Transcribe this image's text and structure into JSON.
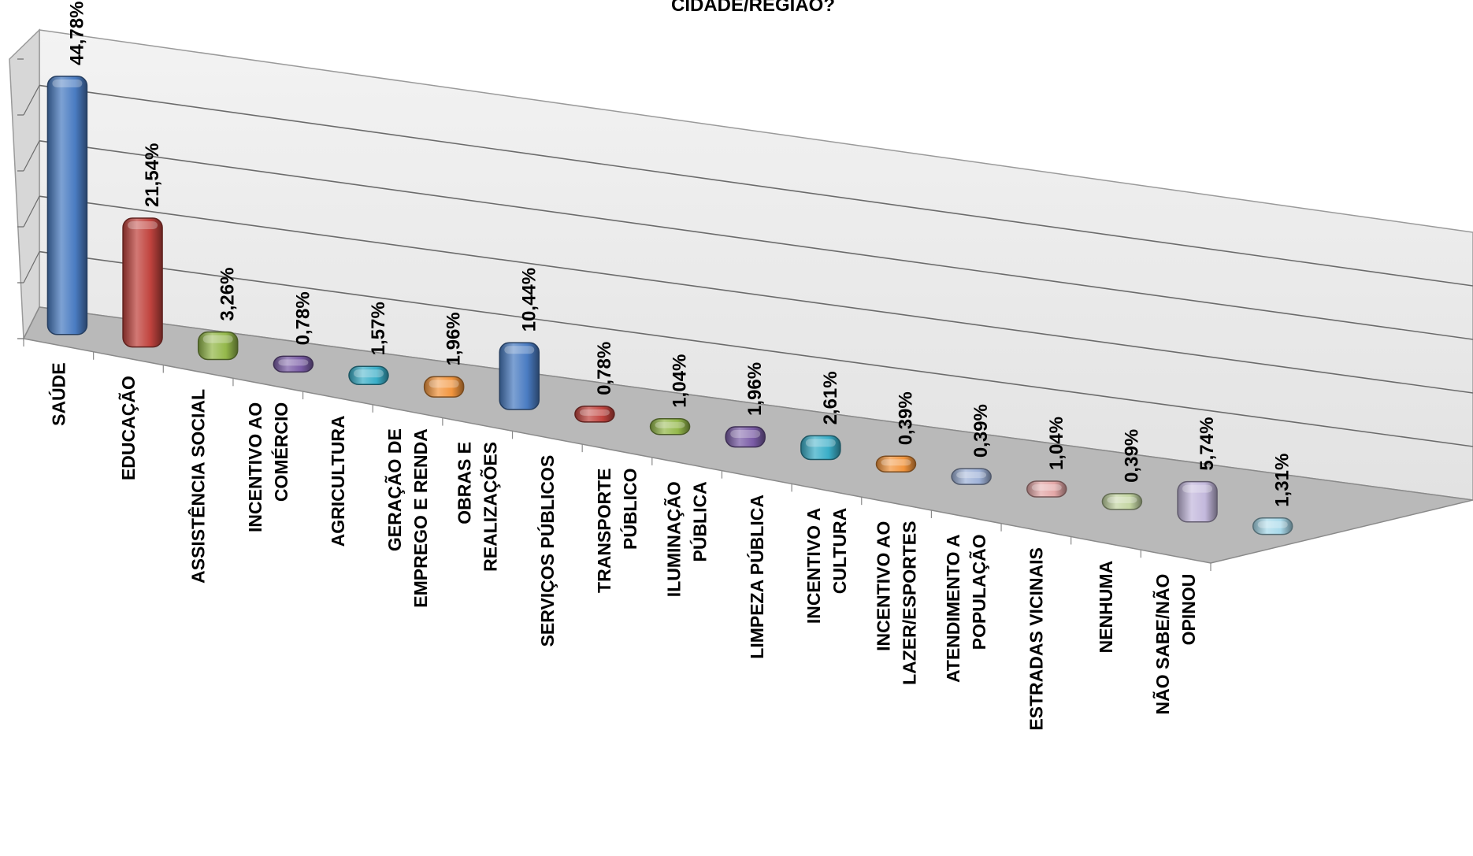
{
  "chart_data": {
    "type": "bar",
    "title": "CIDADE/REGIÃO?",
    "categories": [
      "SAÚDE",
      "EDUCAÇÃO",
      "ASSISTÊNCIA SOCIAL",
      "INCENTIVO AO COMÉRCIO",
      "AGRICULTURA",
      "GERAÇÃO DE EMPREGO E RENDA",
      "OBRAS E REALIZAÇÕES",
      "SERVIÇOS PÚBLICOS",
      "TRANSPORTE PÚBLICO",
      "ILUMINAÇÃO PÚBLICA",
      "LIMPEZA PÚBLICA",
      "INCENTIVO A CULTURA",
      "INCENTIVO AO LAZER/ESPORTES",
      "ATENDIMENTO A POPULAÇÃO",
      "ESTRADAS VICINAIS",
      "NENHUMA",
      "NÃO SABE/NÃO OPINOU"
    ],
    "category_lines": [
      [
        "SAÚDE"
      ],
      [
        "EDUCAÇÃO"
      ],
      [
        "ASSISTÊNCIA SOCIAL"
      ],
      [
        "INCENTIVO AO",
        "COMÉRCIO"
      ],
      [
        "AGRICULTURA"
      ],
      [
        "GERAÇÃO DE",
        "EMPREGO E RENDA"
      ],
      [
        "OBRAS E",
        "REALIZAÇÕES"
      ],
      [
        "SERVIÇOS PÚBLICOS"
      ],
      [
        "TRANSPORTE",
        "PÚBLICO"
      ],
      [
        "ILUMINAÇÃO",
        "PÚBLICA"
      ],
      [
        "LIMPEZA PÚBLICA"
      ],
      [
        "INCENTIVO A",
        "CULTURA"
      ],
      [
        "INCENTIVO AO",
        "LAZER/ESPORTES"
      ],
      [
        "ATENDIMENTO A",
        "POPULAÇÃO"
      ],
      [
        "ESTRADAS VICINAIS"
      ],
      [
        "NENHUMA"
      ],
      [
        "NÃO SABE/NÃO",
        "OPINOU"
      ]
    ],
    "values": [
      44.78,
      21.54,
      3.26,
      0.78,
      1.57,
      1.96,
      10.44,
      0.78,
      1.04,
      1.96,
      2.61,
      0.39,
      0.39,
      1.04,
      0.39,
      5.74,
      1.31
    ],
    "value_labels": [
      "44,78%",
      "21,54%",
      "3,26%",
      "0,78%",
      "1,57%",
      "1,96%",
      "10,44%",
      "0,78%",
      "1,04%",
      "1,96%",
      "2,61%",
      "0,39%",
      "0,39%",
      "1,04%",
      "0,39%",
      "5,74%",
      "1,31%"
    ],
    "colors": [
      "#4a7cc2",
      "#c0433e",
      "#94b84b",
      "#7a5ca6",
      "#3aaec8",
      "#f2953e",
      "#4a7cc2",
      "#c0433e",
      "#94b84b",
      "#7a5ca6",
      "#3aaec8",
      "#f2953e",
      "#9fb2d8",
      "#e3a7a7",
      "#c4d6a3",
      "#c3b8dc",
      "#a8d9ea"
    ],
    "ylim": [
      0,
      50
    ],
    "grid": true,
    "legend": "none",
    "perspective_3d": true
  }
}
